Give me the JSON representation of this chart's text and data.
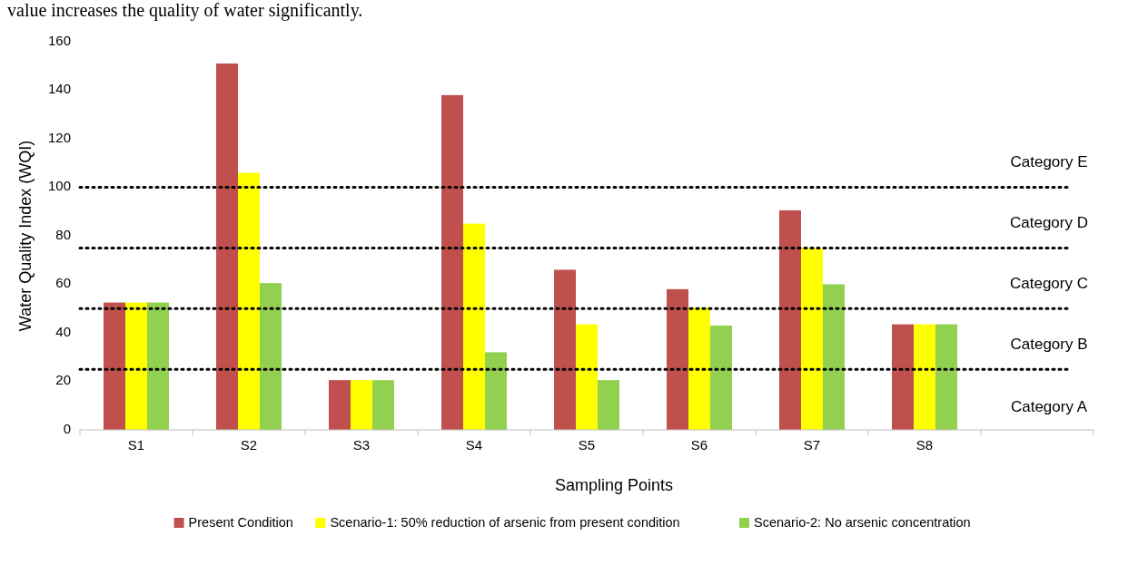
{
  "chart_data": {
    "type": "bar",
    "xlabel": "Sampling Points",
    "ylabel": "Water Quality Index (WQI)",
    "categories": [
      "S1",
      "S2",
      "S3",
      "S4",
      "S5",
      "S6",
      "S7",
      "S8",
      null
    ],
    "series": [
      {
        "name": "Present Condition",
        "color": "#c0504d",
        "values": [
          52.5,
          151,
          20.5,
          138,
          66,
          58,
          90.5,
          43.5,
          null
        ]
      },
      {
        "name": "Scenario-1: 50% reduction of arsenic from present condition",
        "color": "#ffff00",
        "values": [
          52.5,
          106,
          20.5,
          85,
          43.5,
          50.5,
          75,
          43.5,
          null
        ]
      },
      {
        "name": "Scenario-2: No arsenic concentration",
        "color": "#92d050",
        "values": [
          52.5,
          60.5,
          20.5,
          32,
          20.5,
          43,
          60,
          43.5,
          null
        ]
      }
    ],
    "ylim": [
      0,
      160
    ],
    "yticks": [
      0,
      20,
      40,
      60,
      80,
      100,
      120,
      140,
      160
    ],
    "grid": false,
    "legend": "bottom",
    "ref_lines": [
      {
        "axis": "y",
        "value": 25,
        "color": "#000000",
        "line_style": "dotted"
      },
      {
        "axis": "y",
        "value": 50,
        "color": "#000000",
        "line_style": "dotted"
      },
      {
        "axis": "y",
        "value": 75,
        "color": "#000000",
        "line_style": "dotted"
      },
      {
        "axis": "y",
        "value": 100,
        "color": "#000000",
        "line_style": "dotted"
      }
    ],
    "annotations": [
      "value increases the quality of water significantly.",
      "Category E",
      "Category D",
      "Category C",
      "Category B",
      "Category A"
    ]
  }
}
